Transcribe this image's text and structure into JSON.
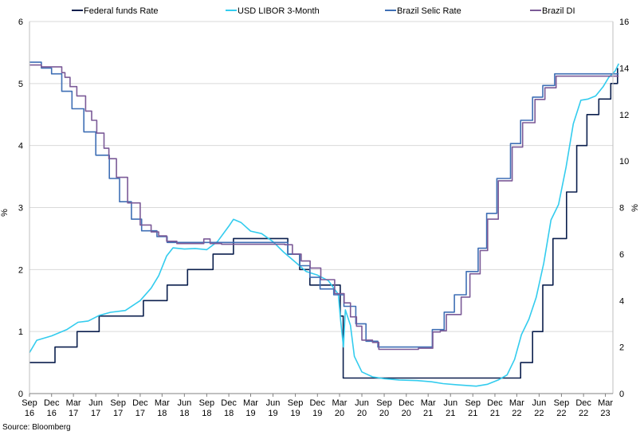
{
  "chart_data": {
    "type": "line",
    "ylabel_left": "%",
    "ylabel_right": "%",
    "source": "Source: Bloomberg",
    "y_left": {
      "min": 0,
      "max": 6,
      "ticks": [
        "0",
        "1",
        "2",
        "3",
        "4",
        "5",
        "6"
      ]
    },
    "y_right": {
      "min": 0,
      "max": 16,
      "ticks": [
        "0",
        "2",
        "4",
        "6",
        "8",
        "10",
        "12",
        "14",
        "16"
      ]
    },
    "x_range": [
      "2016-09",
      "2023-04"
    ],
    "x_ticks": [
      {
        "date": "2016-09",
        "m": "Sep",
        "y": "16"
      },
      {
        "date": "2016-12",
        "m": "Dec",
        "y": "16"
      },
      {
        "date": "2017-03",
        "m": "Mar",
        "y": "17"
      },
      {
        "date": "2017-06",
        "m": "Jun",
        "y": "17"
      },
      {
        "date": "2017-09",
        "m": "Sep",
        "y": "17"
      },
      {
        "date": "2017-12",
        "m": "Dec",
        "y": "17"
      },
      {
        "date": "2018-03",
        "m": "Mar",
        "y": "18"
      },
      {
        "date": "2018-06",
        "m": "Jun",
        "y": "18"
      },
      {
        "date": "2018-09",
        "m": "Sep",
        "y": "18"
      },
      {
        "date": "2018-12",
        "m": "Dec",
        "y": "18"
      },
      {
        "date": "2019-03",
        "m": "Mar",
        "y": "19"
      },
      {
        "date": "2019-06",
        "m": "Jun",
        "y": "19"
      },
      {
        "date": "2019-09",
        "m": "Sep",
        "y": "19"
      },
      {
        "date": "2019-12",
        "m": "Dec",
        "y": "19"
      },
      {
        "date": "2020-03",
        "m": "Mar",
        "y": "20"
      },
      {
        "date": "2020-06",
        "m": "Jun",
        "y": "20"
      },
      {
        "date": "2020-09",
        "m": "Sep",
        "y": "20"
      },
      {
        "date": "2020-12",
        "m": "Dec",
        "y": "20"
      },
      {
        "date": "2021-03",
        "m": "Mar",
        "y": "21"
      },
      {
        "date": "2021-06",
        "m": "Jun",
        "y": "21"
      },
      {
        "date": "2021-09",
        "m": "Sep",
        "y": "21"
      },
      {
        "date": "2021-12",
        "m": "Dec",
        "y": "21"
      },
      {
        "date": "2022-03",
        "m": "Mar",
        "y": "22"
      },
      {
        "date": "2022-06",
        "m": "Jun",
        "y": "22"
      },
      {
        "date": "2022-09",
        "m": "Sep",
        "y": "22"
      },
      {
        "date": "2022-12",
        "m": "Dec",
        "y": "22"
      },
      {
        "date": "2023-03",
        "m": "Mar",
        "y": "23"
      }
    ],
    "legend_placement": "top",
    "series": [
      {
        "name": "Federal funds Rate",
        "axis": "left",
        "color": "#0b1f4d",
        "step": true,
        "points": [
          [
            "2016-09-01",
            0.5
          ],
          [
            "2016-12-15",
            0.75
          ],
          [
            "2017-03-16",
            1.0
          ],
          [
            "2017-06-15",
            1.25
          ],
          [
            "2017-12-14",
            1.5
          ],
          [
            "2018-03-22",
            1.75
          ],
          [
            "2018-06-14",
            2.0
          ],
          [
            "2018-09-27",
            2.25
          ],
          [
            "2018-12-20",
            2.5
          ],
          [
            "2019-08-01",
            2.25
          ],
          [
            "2019-09-19",
            2.0
          ],
          [
            "2019-10-31",
            1.75
          ],
          [
            "2020-03-04",
            1.25
          ],
          [
            "2020-03-16",
            0.25
          ],
          [
            "2022-03-17",
            0.5
          ],
          [
            "2022-05-05",
            1.0
          ],
          [
            "2022-06-16",
            1.75
          ],
          [
            "2022-07-28",
            2.5
          ],
          [
            "2022-09-22",
            3.25
          ],
          [
            "2022-11-03",
            4.0
          ],
          [
            "2022-12-15",
            4.5
          ],
          [
            "2023-02-02",
            4.75
          ],
          [
            "2023-03-23",
            5.0
          ],
          [
            "2023-04-20",
            5.25
          ]
        ]
      },
      {
        "name": "USD LIBOR 3-Month",
        "axis": "left",
        "color": "#33ccee",
        "step": false,
        "points": [
          [
            "2016-09-01",
            0.66
          ],
          [
            "2016-10-01",
            0.86
          ],
          [
            "2016-12-01",
            0.93
          ],
          [
            "2017-02-01",
            1.03
          ],
          [
            "2017-03-20",
            1.15
          ],
          [
            "2017-05-01",
            1.17
          ],
          [
            "2017-06-15",
            1.26
          ],
          [
            "2017-08-01",
            1.31
          ],
          [
            "2017-10-01",
            1.34
          ],
          [
            "2017-12-01",
            1.5
          ],
          [
            "2018-01-15",
            1.7
          ],
          [
            "2018-02-15",
            1.9
          ],
          [
            "2018-03-20",
            2.22
          ],
          [
            "2018-04-15",
            2.35
          ],
          [
            "2018-06-01",
            2.33
          ],
          [
            "2018-07-15",
            2.34
          ],
          [
            "2018-09-01",
            2.32
          ],
          [
            "2018-10-15",
            2.45
          ],
          [
            "2018-12-01",
            2.7
          ],
          [
            "2018-12-20",
            2.81
          ],
          [
            "2019-01-20",
            2.76
          ],
          [
            "2019-03-01",
            2.62
          ],
          [
            "2019-04-15",
            2.58
          ],
          [
            "2019-06-01",
            2.45
          ],
          [
            "2019-07-15",
            2.28
          ],
          [
            "2019-09-01",
            2.12
          ],
          [
            "2019-10-15",
            1.97
          ],
          [
            "2019-12-01",
            1.91
          ],
          [
            "2020-01-15",
            1.82
          ],
          [
            "2020-02-25",
            1.6
          ],
          [
            "2020-03-05",
            1.2
          ],
          [
            "2020-03-17",
            0.75
          ],
          [
            "2020-03-25",
            1.35
          ],
          [
            "2020-04-15",
            1.1
          ],
          [
            "2020-05-01",
            0.6
          ],
          [
            "2020-06-01",
            0.35
          ],
          [
            "2020-07-15",
            0.27
          ],
          [
            "2020-09-01",
            0.24
          ],
          [
            "2020-11-01",
            0.22
          ],
          [
            "2021-01-15",
            0.21
          ],
          [
            "2021-03-15",
            0.19
          ],
          [
            "2021-05-01",
            0.16
          ],
          [
            "2021-07-01",
            0.14
          ],
          [
            "2021-09-15",
            0.12
          ],
          [
            "2021-11-01",
            0.15
          ],
          [
            "2021-12-15",
            0.22
          ],
          [
            "2022-01-20",
            0.3
          ],
          [
            "2022-02-20",
            0.55
          ],
          [
            "2022-03-20",
            0.95
          ],
          [
            "2022-04-20",
            1.2
          ],
          [
            "2022-05-20",
            1.55
          ],
          [
            "2022-06-20",
            2.1
          ],
          [
            "2022-07-20",
            2.8
          ],
          [
            "2022-08-20",
            3.05
          ],
          [
            "2022-09-20",
            3.65
          ],
          [
            "2022-10-20",
            4.35
          ],
          [
            "2022-11-20",
            4.73
          ],
          [
            "2022-12-20",
            4.75
          ],
          [
            "2023-01-20",
            4.8
          ],
          [
            "2023-02-20",
            4.95
          ],
          [
            "2023-03-15",
            5.1
          ],
          [
            "2023-04-10",
            5.2
          ],
          [
            "2023-04-25",
            5.32
          ]
        ]
      },
      {
        "name": "Brazil Selic Rate",
        "axis": "right",
        "color": "#3f6fb5",
        "step": true,
        "points": [
          [
            "2016-09-01",
            14.25
          ],
          [
            "2016-10-20",
            14.0
          ],
          [
            "2016-12-01",
            13.75
          ],
          [
            "2017-01-12",
            13.0
          ],
          [
            "2017-02-23",
            12.25
          ],
          [
            "2017-04-13",
            11.25
          ],
          [
            "2017-06-01",
            10.25
          ],
          [
            "2017-07-27",
            9.25
          ],
          [
            "2017-09-07",
            8.25
          ],
          [
            "2017-10-26",
            7.5
          ],
          [
            "2017-12-07",
            7.0
          ],
          [
            "2018-02-08",
            6.75
          ],
          [
            "2018-03-22",
            6.5
          ],
          [
            "2019-08-01",
            6.0
          ],
          [
            "2019-09-19",
            5.5
          ],
          [
            "2019-10-31",
            5.0
          ],
          [
            "2019-12-12",
            4.5
          ],
          [
            "2020-02-06",
            4.25
          ],
          [
            "2020-03-19",
            3.75
          ],
          [
            "2020-05-07",
            3.0
          ],
          [
            "2020-06-18",
            2.25
          ],
          [
            "2020-08-06",
            2.0
          ],
          [
            "2021-03-18",
            2.75
          ],
          [
            "2021-05-06",
            3.5
          ],
          [
            "2021-06-17",
            4.25
          ],
          [
            "2021-08-05",
            5.25
          ],
          [
            "2021-09-23",
            6.25
          ],
          [
            "2021-10-28",
            7.75
          ],
          [
            "2021-12-09",
            9.25
          ],
          [
            "2022-02-03",
            10.75
          ],
          [
            "2022-03-17",
            11.75
          ],
          [
            "2022-05-05",
            12.75
          ],
          [
            "2022-06-16",
            13.25
          ],
          [
            "2022-08-04",
            13.75
          ],
          [
            "2023-04-25",
            13.75
          ]
        ]
      },
      {
        "name": "Brazil DI",
        "axis": "right",
        "color": "#7b5a97",
        "step": true,
        "points": [
          [
            "2016-09-01",
            14.13
          ],
          [
            "2016-10-20",
            14.05
          ],
          [
            "2017-01-12",
            13.8
          ],
          [
            "2017-01-25",
            13.6
          ],
          [
            "2017-02-15",
            13.2
          ],
          [
            "2017-03-15",
            12.8
          ],
          [
            "2017-04-20",
            12.15
          ],
          [
            "2017-05-15",
            11.75
          ],
          [
            "2017-06-05",
            11.2
          ],
          [
            "2017-07-05",
            10.55
          ],
          [
            "2017-07-25",
            10.1
          ],
          [
            "2017-08-25",
            9.3
          ],
          [
            "2017-10-10",
            8.2
          ],
          [
            "2017-12-01",
            7.25
          ],
          [
            "2018-01-15",
            6.95
          ],
          [
            "2018-02-15",
            6.78
          ],
          [
            "2018-03-20",
            6.55
          ],
          [
            "2018-05-01",
            6.45
          ],
          [
            "2018-07-01",
            6.45
          ],
          [
            "2018-08-20",
            6.65
          ],
          [
            "2018-09-15",
            6.45
          ],
          [
            "2018-11-01",
            6.42
          ],
          [
            "2019-03-01",
            6.42
          ],
          [
            "2019-07-20",
            6.4
          ],
          [
            "2019-08-20",
            6.0
          ],
          [
            "2019-09-25",
            5.7
          ],
          [
            "2019-11-01",
            5.4
          ],
          [
            "2019-12-15",
            4.9
          ],
          [
            "2020-02-10",
            4.3
          ],
          [
            "2020-03-20",
            3.9
          ],
          [
            "2020-04-15",
            3.3
          ],
          [
            "2020-05-10",
            2.9
          ],
          [
            "2020-06-01",
            2.3
          ],
          [
            "2020-07-15",
            2.2
          ],
          [
            "2020-08-10",
            1.9
          ],
          [
            "2021-01-20",
            1.95
          ],
          [
            "2021-03-20",
            2.65
          ],
          [
            "2021-04-20",
            2.7
          ],
          [
            "2021-05-15",
            3.4
          ],
          [
            "2021-07-15",
            4.15
          ],
          [
            "2021-08-20",
            5.15
          ],
          [
            "2021-10-01",
            6.15
          ],
          [
            "2021-11-01",
            7.5
          ],
          [
            "2021-12-15",
            9.15
          ],
          [
            "2022-02-10",
            10.6
          ],
          [
            "2022-03-25",
            11.65
          ],
          [
            "2022-05-15",
            12.65
          ],
          [
            "2022-06-25",
            13.15
          ],
          [
            "2022-08-10",
            13.65
          ],
          [
            "2023-04-25",
            13.65
          ]
        ]
      }
    ]
  }
}
